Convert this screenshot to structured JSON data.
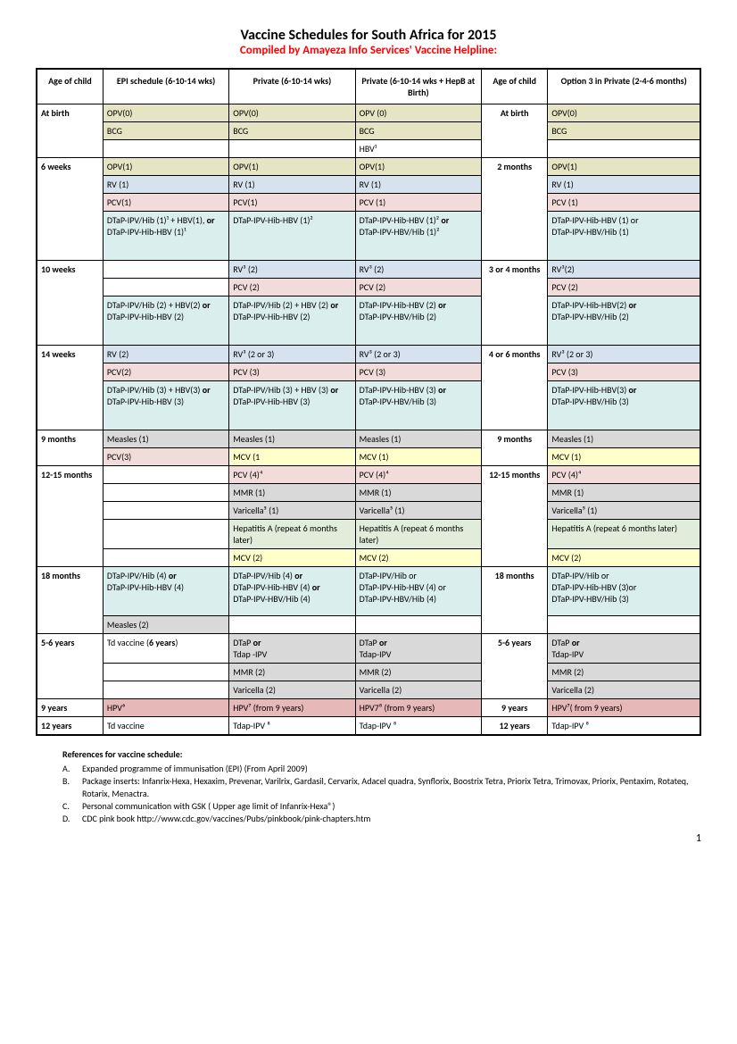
{
  "title": "Vaccine Schedules for South Africa for 2015",
  "subtitle": "Compiled by Amayeza Info Services' Vaccine Helpline:",
  "subtitle_color": "#ff0000",
  "colors": {
    "olive": "#e5e5c3",
    "blue": "#d6e3ef",
    "pink": "#f2dbdb",
    "teal": "#dbeeee",
    "grey": "#d9d9d9",
    "yellow": "#ffffcc",
    "green": "#e1ecda",
    "rose": "#e6b8b7",
    "white": "#ffffff"
  },
  "headers": {
    "c1": "Age of child",
    "c2": "EPI schedule (6-10-14 wks)",
    "c3": "Private (6-10-14 wks)",
    "c4": "Private (6-10-14 wks + HepB at Birth)",
    "c5": "Age of child",
    "c6": "Option 3 in Private (2-4-6 months)"
  },
  "col_widths": [
    "10%",
    "19%",
    "19%",
    "19%",
    "10%",
    "23%"
  ],
  "rows": [
    {
      "section": true,
      "age1": "At birth",
      "c2": "OPV(0)",
      "c2c": "olive",
      "c3": "OPV(0)",
      "c3c": "olive",
      "c4": "OPV (0)",
      "c4c": "olive",
      "age2": "At birth",
      "c6": "OPV(0)",
      "c6c": "olive"
    },
    {
      "c2": "BCG",
      "c2c": "olive",
      "c3": "BCG",
      "c3c": "olive",
      "c4": "BCG",
      "c4c": "olive",
      "c6": "BCG",
      "c6c": "olive"
    },
    {
      "c2": "",
      "c2c": "white",
      "c3": "",
      "c3c": "white",
      "c4": "HBV¹",
      "c4c": "white",
      "c6": "",
      "c6c": "white"
    },
    {
      "section": true,
      "age1": "6 weeks",
      "c2": "OPV(1)",
      "c2c": "olive",
      "c3": "OPV(1)",
      "c3c": "olive",
      "c4": "OPV(1)",
      "c4c": "olive",
      "age2": "2 months",
      "c6": "OPV(1)",
      "c6c": "olive"
    },
    {
      "c2": "RV (1)",
      "c2c": "blue",
      "c3": " RV (1)",
      "c3c": "blue",
      "c4": "RV (1)",
      "c4c": "blue",
      "c6": "RV (1)",
      "c6c": "blue"
    },
    {
      "c2": "PCV(1)",
      "c2c": "pink",
      "c3": "PCV(1)",
      "c3c": "pink",
      "c4": "PCV (1)",
      "c4c": "pink",
      "c6": "PCV (1)",
      "c6c": "pink"
    },
    {
      "c2": "DTaP-IPV/Hib (1)¹ + HBV(1), <b>or</b><br>DTaP-IPV-Hib-HBV (1)¹",
      "c2c": "teal",
      "c3": "DTaP-IPV-Hib-HBV (1)²",
      "c3c": "teal",
      "c4": "DTaP-IPV-Hib-HBV (1)² <b>or</b><br>DTaP-IPV-HBV/Hib (1)²",
      "c4c": "teal",
      "c6": "DTaP-IPV-Hib-HBV (1) or<br>DTaP-IPV-HBV/Hib (1)",
      "c6c": "teal",
      "tall": true
    },
    {
      "section": true,
      "age1": "10 weeks",
      "c2": "",
      "c2c": "white",
      "c3": "RV³ (2)",
      "c3c": "blue",
      "c4": "RV³ (2)",
      "c4c": "blue",
      "age2": "3 or 4 months",
      "c6": "RV³(2)",
      "c6c": "blue"
    },
    {
      "c2": "",
      "c2c": "white",
      "c3": "PCV (2)",
      "c3c": "pink",
      "c4": "PCV (2)",
      "c4c": "pink",
      "c6": "PCV (2)",
      "c6c": "pink"
    },
    {
      "c2": "DTaP-IPV/Hib (2) + HBV(2) <b>or</b><br>DTaP-IPV-Hib-HBV (2)",
      "c2c": "teal",
      "c3": "DTaP-IPV/Hib (2) + HBV (2)  <b>or</b><br>DTaP-IPV-Hib-HBV (2)",
      "c3c": "teal",
      "c4": "DTaP-IPV-Hib-HBV (2) <b>or</b><br>DTaP-IPV-HBV/Hib (2)",
      "c4c": "teal",
      "c6": "DTaP-IPV-Hib-HBV(2) <b>or</b><br> DTaP-IPV-HBV/Hib (2)",
      "c6c": "teal",
      "tall": true
    },
    {
      "section": true,
      "age1": "14 weeks",
      "c2": "RV (2)",
      "c2c": "blue",
      "c3": "RV³ (2 or 3)",
      "c3c": "blue",
      "c4": "RV³ (2 or 3)",
      "c4c": "blue",
      "age2": "4 or 6 months",
      "c6": "RV³ (2 or 3)",
      "c6c": "blue"
    },
    {
      "c2": "PCV(2)",
      "c2c": "pink",
      "c3": "PCV (3)",
      "c3c": "pink",
      "c4": "PCV (3)",
      "c4c": "pink",
      "c6": "PCV (3)",
      "c6c": "pink"
    },
    {
      "c2": "DTaP-IPV/Hib (3) + HBV(3)  <b>or</b><br>DTaP-IPV-Hib-HBV (3)",
      "c2c": "teal",
      "c3": "DTaP-IPV/Hib (3) + HBV (3) <b>or</b><br>DTaP-IPV-Hib-HBV (3)",
      "c3c": "teal",
      "c4": "DTaP-IPV-Hib-HBV (3) <b>or</b><br>DTaP-IPV-HBV/Hib (3)",
      "c4c": "teal",
      "c6": "DTaP-IPV-Hib-HBV(3) <b>or</b><br>DTaP-IPV-HBV/Hib (3)",
      "c6c": "teal",
      "tall": true
    },
    {
      "section": true,
      "age1": "9 months",
      "c2": "Measles (1)",
      "c2c": "grey",
      "c3": "Measles (1)",
      "c3c": "grey",
      "c4": "Measles (1)",
      "c4c": "grey",
      "age2": "9 months",
      "c6": "Measles (1)",
      "c6c": "grey"
    },
    {
      "c2": "PCV(3)",
      "c2c": "pink",
      "c3": "MCV (1",
      "c3c": "yellow",
      "c4": "MCV (1)",
      "c4c": "yellow",
      "c6": "MCV (1)",
      "c6c": "yellow"
    },
    {
      "section": true,
      "age1": "12-15 months",
      "c2": "",
      "c2c": "white",
      "c3": "PCV (4)⁴",
      "c3c": "pink",
      "c4": "PCV (4)⁴",
      "c4c": "pink",
      "age2": "12-15 months",
      "c6": "PCV (4)⁴",
      "c6c": "pink"
    },
    {
      "c2": "",
      "c2c": "white",
      "c3": "MMR (1)",
      "c3c": "grey",
      "c4": "MMR (1)",
      "c4c": "grey",
      "c6": "MMR (1)",
      "c6c": "grey"
    },
    {
      "c2": "",
      "c2c": "white",
      "c3": "Varicella⁵ (1)",
      "c3c": "grey",
      "c4": "Varicella⁵ (1)",
      "c4c": "grey",
      "c6": "Varicella⁵ (1)",
      "c6c": "grey"
    },
    {
      "c2": "",
      "c2c": "white",
      "c3": "Hepatitis A (repeat 6 months later)",
      "c3c": "green",
      "c4": "Hepatitis A (repeat 6 months later)",
      "c4c": "green",
      "c6": "Hepatitis A  (repeat 6 months later)",
      "c6c": "green"
    },
    {
      "c2": "",
      "c2c": "white",
      "c3": "MCV (2)",
      "c3c": "yellow",
      "c4": "MCV (2)",
      "c4c": "yellow",
      "c6": "MCV (2)",
      "c6c": "yellow"
    },
    {
      "section": true,
      "age1": "18 months",
      "c2": "DTaP-IPV/Hib (4)  <b>or</b><br>DTaP-IPV-Hib-HBV (4)",
      "c2c": "teal",
      "c3": "DTaP-IPV/Hib (4)  <b>or</b><br>DTaP-IPV-Hib-HBV (4) <b>or</b><br>DTaP-IPV-HBV/Hib (4)",
      "c3c": "teal",
      "c4": "DTaP-IPV/Hib or<br>DTaP-IPV-Hib-HBV (4) or<br>DTaP-IPV-HBV/Hib (4)",
      "c4c": "teal",
      "age2": "18 months",
      "c6": "DTaP-IPV/Hib or<br>DTaP-IPV-Hib-HBV (3)or<br>DTaP-IPV-HBV/Hib (3)",
      "c6c": "teal",
      "tall": true
    },
    {
      "c2": "Measles (2)",
      "c2c": "grey",
      "c3": "",
      "c3c": "white",
      "c4": "",
      "c4c": "white",
      "c6": "",
      "c6c": "white"
    },
    {
      "section": true,
      "age1": "5-6 years",
      "c2": "Td vaccine (<b>6 years</b>)",
      "c2c": "white",
      "c3": "DTaP <b>or</b><br>Tdap -IPV",
      "c3c": "grey",
      "c4": "DTaP <b>or</b><br>Tdap-IPV",
      "c4c": "grey",
      "age2": "5-6 years",
      "c6": "DTaP <b>or</b><br>Tdap-IPV",
      "c6c": "grey"
    },
    {
      "c2": "",
      "c2c": "white",
      "c3": "MMR (2)",
      "c3c": "grey",
      "c4": "MMR (2)",
      "c4c": "grey",
      "c6": "MMR (2)",
      "c6c": "grey"
    },
    {
      "c2": "",
      "c2c": "white",
      "c3": "Varicella (2)",
      "c3c": "grey",
      "c4": "Varicella  (2)",
      "c4c": "grey",
      "c6": "Varicella (2)",
      "c6c": "grey"
    },
    {
      "section": true,
      "age1": "9 years",
      "c2": "HPV⁶",
      "c2c": "rose",
      "c3": "HPV⁷ (from 9 years)",
      "c3c": "rose",
      "c4": "HPV7⁸ (from 9 years)",
      "c4c": "rose",
      "age2": "9 years",
      "c6": "HPV⁷( from 9 years)",
      "c6c": "rose",
      "single": true
    },
    {
      "section": true,
      "age1": "12 years",
      "c2": "Td vaccine",
      "c2c": "white",
      "c3": "Tdap-IPV ⁸",
      "c3c": "white",
      "c4": "Tdap-IPV ⁸",
      "c4c": "white",
      "age2": "12 years",
      "c6": "Tdap-IPV ⁸",
      "c6c": "white",
      "single": true
    }
  ],
  "refs": {
    "heading": "References for vaccine schedule:",
    "items": [
      {
        "l": "A.",
        "t": "Expanded programme of immunisation (EPI) (From April 2009)"
      },
      {
        "l": "B.",
        "t": "Package inserts: Infanrix-Hexa, Hexaxim, Prevenar, Varilrix, Gardasil, Cervarix, Adacel quadra, Synflorix, Boostrix Tetra, Priorix Tetra, Trimovax, Priorix, Pentaxim, Rotateq, Rotarix, Menactra."
      },
      {
        "l": "C.",
        "t": "Personal communication with GSK ( Upper age limit of Infanrix-Hexa®)"
      },
      {
        "l": "D.",
        "t": "CDC pink book http://www.cdc.gov/vaccines/Pubs/pinkbook/pink-chapters.htm"
      }
    ]
  },
  "page_number": "1"
}
